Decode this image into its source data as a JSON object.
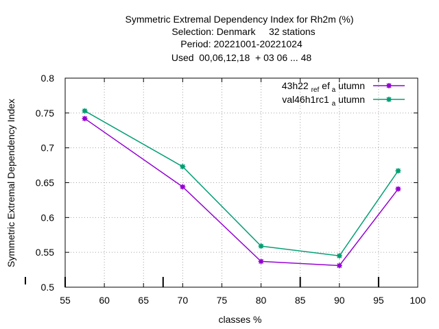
{
  "chart_data": {
    "type": "line",
    "title_lines": [
      "Symmetric Extremal Dependency Index  for Rh2m (%)",
      "Selection: Denmark     32 stations",
      "Period: 20221001-20221024",
      "Used  00,06,12,18  + 03 06 ... 48"
    ],
    "xlabel": "classes %",
    "ylabel": "Symmetric Extremal Dependency Index",
    "xlim": [
      55,
      100
    ],
    "ylim": [
      0.5,
      0.8
    ],
    "xticks": [
      55,
      60,
      65,
      70,
      75,
      80,
      85,
      90,
      95,
      100
    ],
    "yticks": [
      0.5,
      0.55,
      0.6,
      0.65,
      0.7,
      0.75,
      0.8
    ],
    "grid": true,
    "legend_position": "top-right",
    "series": [
      {
        "name_main": "43h22",
        "name_sub": "ref",
        "name_mid": "a",
        "name_end": "utumn",
        "color": "#9400d3",
        "x": [
          57.5,
          70,
          80,
          90,
          97.5
        ],
        "y": [
          0.742,
          0.644,
          0.537,
          0.531,
          0.641
        ]
      },
      {
        "name_main": "val46h1rc1",
        "name_sub": "",
        "name_mid": "a",
        "name_end": "utumn",
        "color": "#009e73",
        "x": [
          57.5,
          70,
          80,
          90,
          97.5
        ],
        "y": [
          0.753,
          0.673,
          0.559,
          0.545,
          0.667
        ]
      }
    ],
    "bottom_marks_x": [
      55,
      67.5,
      85,
      95
    ]
  }
}
